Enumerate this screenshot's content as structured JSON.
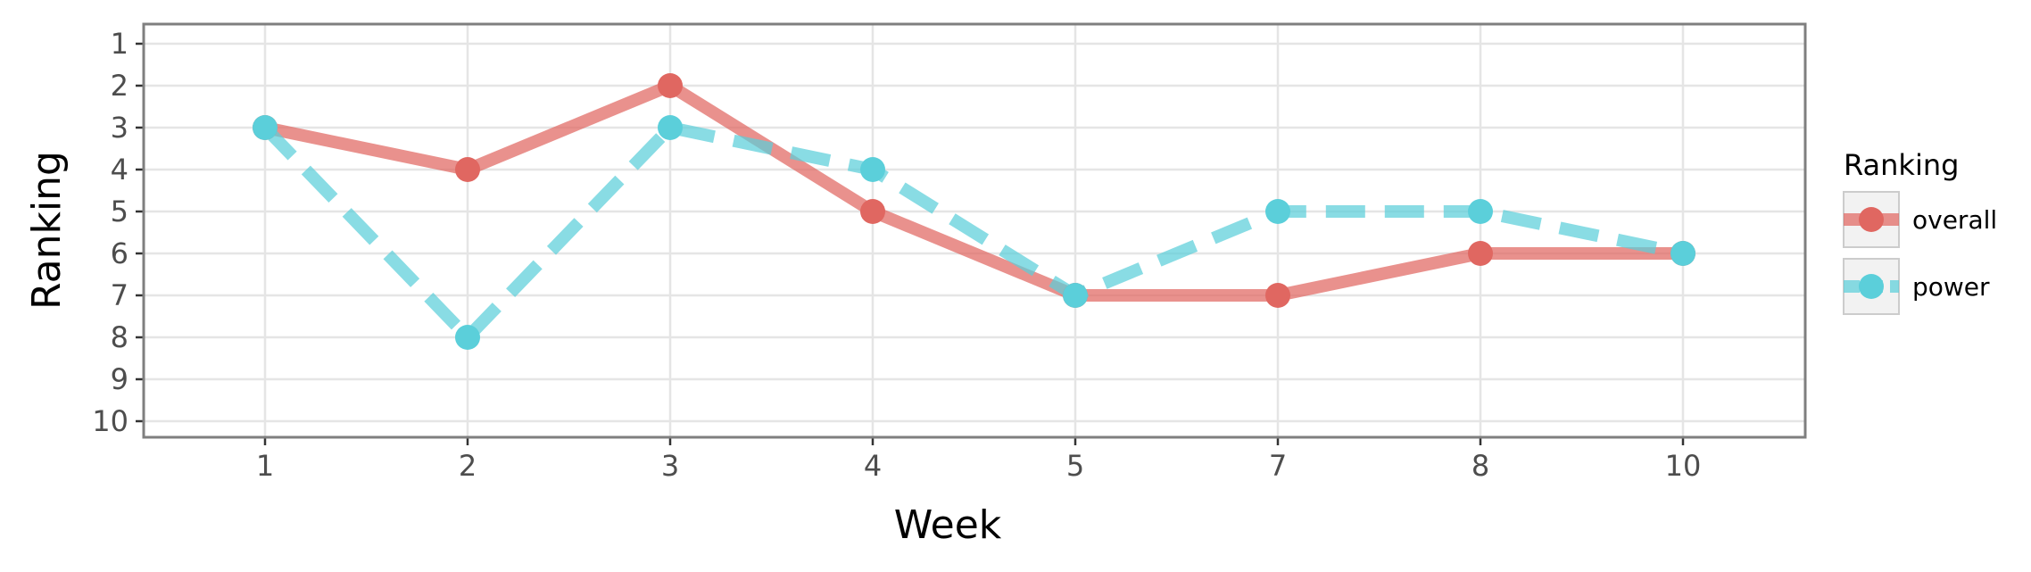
{
  "chart_data": {
    "type": "line",
    "xlabel": "Week",
    "ylabel": "Ranking",
    "categories": [
      "1",
      "2",
      "3",
      "4",
      "5",
      "7",
      "8",
      "10"
    ],
    "y_ticks": [
      1,
      2,
      3,
      4,
      5,
      6,
      7,
      8,
      9,
      10
    ],
    "ylim": [
      1,
      10
    ],
    "y_reversed": true,
    "grid": true,
    "legend": {
      "title": "Ranking",
      "position": "right"
    },
    "series": [
      {
        "name": "overall",
        "values": [
          3,
          4,
          2,
          5,
          7,
          7,
          6,
          6
        ],
        "color": "#e06761",
        "line_style": "solid"
      },
      {
        "name": "power",
        "values": [
          3,
          8,
          3,
          4,
          7,
          5,
          5,
          6
        ],
        "color": "#5bcfda",
        "line_style": "dashed"
      }
    ]
  }
}
